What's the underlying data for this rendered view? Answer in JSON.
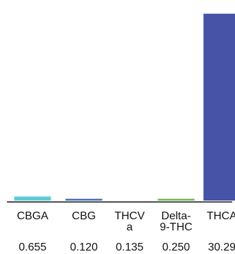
{
  "chart_data": {
    "type": "bar",
    "categories": [
      [
        "CBGA"
      ],
      [
        "CBG"
      ],
      [
        "THCV",
        "a"
      ],
      [
        "Delta-",
        "9-THC"
      ],
      [
        "THCA"
      ]
    ],
    "values": [
      0.655,
      0.12,
      0.135,
      0.25,
      30.29
    ],
    "value_labels": [
      "0.655",
      "0.120",
      "0.135",
      "0.250",
      "30.29"
    ],
    "colors": [
      "#5ecbd9",
      "#3f6fb5",
      "#ffffff",
      "#6fb84a",
      "#4653a6"
    ],
    "ylim": [
      0,
      31.5
    ],
    "title": "",
    "xlabel": "",
    "ylabel": "",
    "grid": false,
    "legend": "none"
  }
}
